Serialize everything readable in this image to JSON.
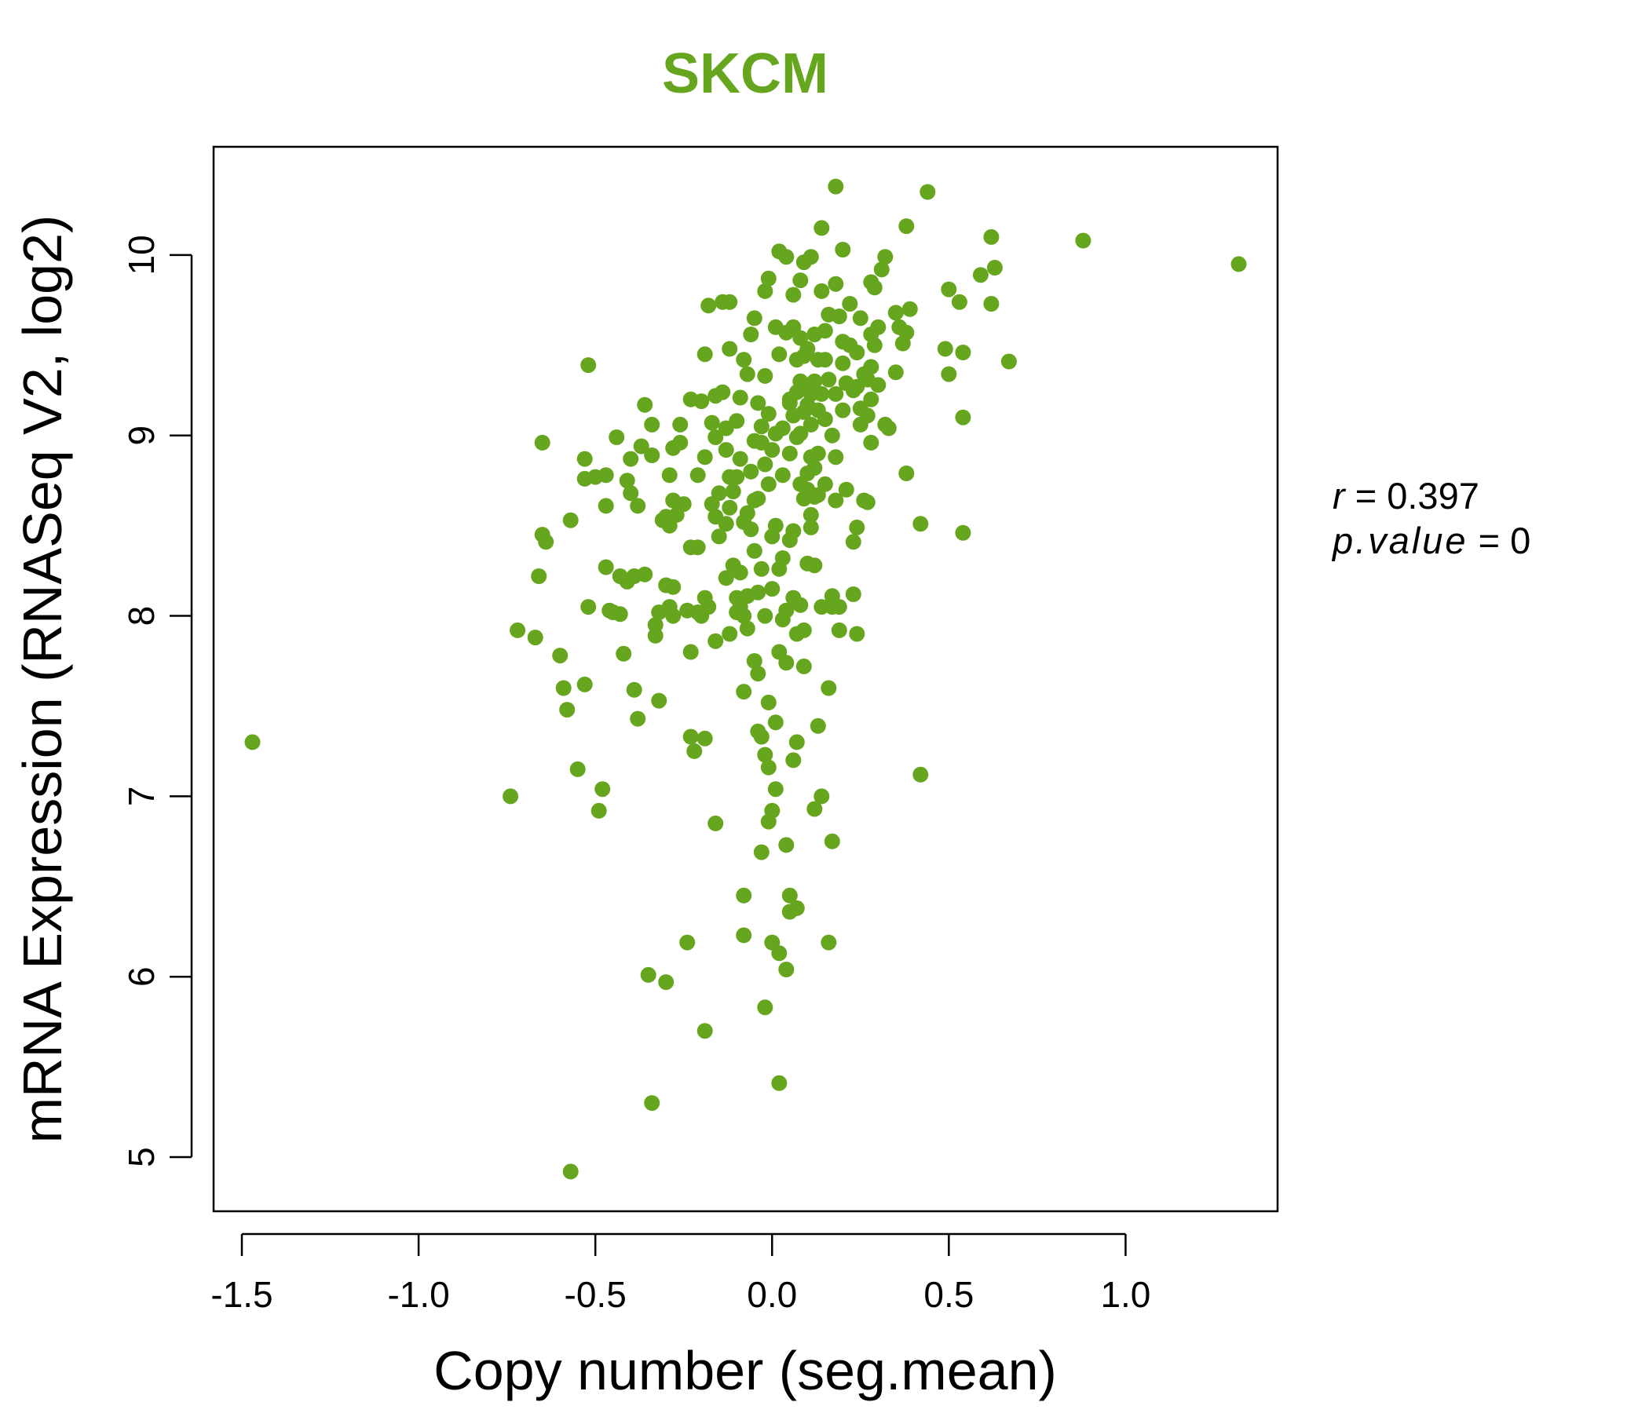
{
  "chart_data": {
    "type": "scatter",
    "title": "SKCM",
    "xlabel": "Copy number (seg.mean)",
    "ylabel": "mRNA Expression (RNASeq V2, log2)",
    "xlim": [
      -1.58,
      1.43
    ],
    "ylim": [
      4.7,
      10.6
    ],
    "x_ticks": [
      -1.5,
      -1.0,
      -0.5,
      0.0,
      0.5,
      1.0
    ],
    "x_tick_labels": [
      "-1.5",
      "-1.0",
      "-0.5",
      "0.0",
      "0.5",
      "1.0"
    ],
    "y_ticks": [
      5,
      6,
      7,
      8,
      9,
      10
    ],
    "y_tick_labels": [
      "5",
      "6",
      "7",
      "8",
      "9",
      "10"
    ],
    "grid": false,
    "point_color": "#66a61e",
    "title_color": "#66a61e",
    "stats": {
      "r_label": "r",
      "r_value": "0.397",
      "p_label": "p.value",
      "p_value": "0"
    },
    "points": [
      [
        -1.47,
        7.3
      ],
      [
        -0.74,
        7.0
      ],
      [
        -0.72,
        7.92
      ],
      [
        -0.67,
        7.88
      ],
      [
        -0.66,
        8.22
      ],
      [
        -0.65,
        8.45
      ],
      [
        -0.65,
        8.96
      ],
      [
        -0.64,
        8.41
      ],
      [
        -0.6,
        7.78
      ],
      [
        -0.59,
        7.6
      ],
      [
        -0.58,
        7.48
      ],
      [
        -0.57,
        8.53
      ],
      [
        -0.57,
        4.92
      ],
      [
        -0.55,
        7.15
      ],
      [
        -0.53,
        7.62
      ],
      [
        -0.53,
        8.76
      ],
      [
        -0.53,
        8.87
      ],
      [
        -0.52,
        8.05
      ],
      [
        -0.52,
        9.39
      ],
      [
        -0.5,
        8.77
      ],
      [
        -0.49,
        6.92
      ],
      [
        -0.48,
        7.04
      ],
      [
        -0.47,
        8.27
      ],
      [
        -0.47,
        8.61
      ],
      [
        -0.47,
        8.78
      ],
      [
        -0.46,
        8.03
      ],
      [
        -0.45,
        8.02
      ],
      [
        -0.44,
        8.99
      ],
      [
        -0.43,
        8.01
      ],
      [
        -0.43,
        8.22
      ],
      [
        -0.42,
        7.79
      ],
      [
        -0.41,
        8.19
      ],
      [
        -0.41,
        8.75
      ],
      [
        -0.4,
        8.68
      ],
      [
        -0.4,
        8.87
      ],
      [
        -0.39,
        7.59
      ],
      [
        -0.39,
        8.22
      ],
      [
        -0.38,
        7.43
      ],
      [
        -0.38,
        8.61
      ],
      [
        -0.37,
        8.94
      ],
      [
        -0.36,
        8.23
      ],
      [
        -0.36,
        9.17
      ],
      [
        -0.35,
        6.01
      ],
      [
        -0.34,
        5.3
      ],
      [
        -0.34,
        9.06
      ],
      [
        -0.34,
        8.89
      ],
      [
        -0.33,
        7.95
      ],
      [
        -0.33,
        7.89
      ],
      [
        -0.32,
        7.53
      ],
      [
        -0.32,
        8.02
      ],
      [
        -0.31,
        8.53
      ],
      [
        -0.3,
        5.97
      ],
      [
        -0.3,
        8.17
      ],
      [
        -0.3,
        8.55
      ],
      [
        -0.29,
        8.05
      ],
      [
        -0.29,
        8.5
      ],
      [
        -0.29,
        8.78
      ],
      [
        -0.28,
        8.0
      ],
      [
        -0.28,
        8.16
      ],
      [
        -0.28,
        8.64
      ],
      [
        -0.28,
        8.93
      ],
      [
        -0.27,
        8.56
      ],
      [
        -0.26,
        8.96
      ],
      [
        -0.26,
        9.06
      ],
      [
        -0.25,
        8.62
      ],
      [
        -0.24,
        6.19
      ],
      [
        -0.24,
        8.03
      ],
      [
        -0.23,
        7.33
      ],
      [
        -0.23,
        7.8
      ],
      [
        -0.23,
        8.38
      ],
      [
        -0.23,
        9.2
      ],
      [
        -0.22,
        7.25
      ],
      [
        -0.21,
        8.02
      ],
      [
        -0.21,
        8.38
      ],
      [
        -0.21,
        8.78
      ],
      [
        -0.2,
        8.0
      ],
      [
        -0.2,
        9.19
      ],
      [
        -0.19,
        5.7
      ],
      [
        -0.19,
        7.32
      ],
      [
        -0.19,
        8.1
      ],
      [
        -0.19,
        8.88
      ],
      [
        -0.19,
        9.45
      ],
      [
        -0.18,
        9.72
      ],
      [
        -0.18,
        8.05
      ],
      [
        -0.17,
        8.62
      ],
      [
        -0.17,
        9.07
      ],
      [
        -0.16,
        6.85
      ],
      [
        -0.16,
        7.86
      ],
      [
        -0.16,
        8.55
      ],
      [
        -0.16,
        8.99
      ],
      [
        -0.16,
        9.22
      ],
      [
        -0.15,
        8.44
      ],
      [
        -0.15,
        8.68
      ],
      [
        -0.14,
        9.24
      ],
      [
        -0.14,
        9.74
      ],
      [
        -0.13,
        8.21
      ],
      [
        -0.13,
        8.51
      ],
      [
        -0.13,
        8.92
      ],
      [
        -0.13,
        9.04
      ],
      [
        -0.12,
        9.74
      ],
      [
        -0.12,
        7.9
      ],
      [
        -0.12,
        8.6
      ],
      [
        -0.12,
        8.77
      ],
      [
        -0.12,
        9.48
      ],
      [
        -0.11,
        8.28
      ],
      [
        -0.11,
        8.69
      ],
      [
        -0.1,
        8.02
      ],
      [
        -0.1,
        8.1
      ],
      [
        -0.1,
        8.77
      ],
      [
        -0.1,
        9.08
      ],
      [
        -0.09,
        8.05
      ],
      [
        -0.09,
        8.24
      ],
      [
        -0.09,
        8.87
      ],
      [
        -0.09,
        9.21
      ],
      [
        -0.08,
        6.45
      ],
      [
        -0.08,
        6.23
      ],
      [
        -0.08,
        7.58
      ],
      [
        -0.08,
        8.0
      ],
      [
        -0.08,
        8.52
      ],
      [
        -0.08,
        9.42
      ],
      [
        -0.07,
        7.93
      ],
      [
        -0.07,
        8.11
      ],
      [
        -0.07,
        8.57
      ],
      [
        -0.07,
        9.34
      ],
      [
        -0.06,
        9.56
      ],
      [
        -0.06,
        8.8
      ],
      [
        -0.06,
        8.48
      ],
      [
        -0.05,
        9.65
      ],
      [
        -0.05,
        7.75
      ],
      [
        -0.05,
        8.36
      ],
      [
        -0.05,
        8.64
      ],
      [
        -0.05,
        8.97
      ],
      [
        -0.04,
        8.13
      ],
      [
        -0.04,
        8.65
      ],
      [
        -0.04,
        9.18
      ],
      [
        -0.04,
        7.36
      ],
      [
        -0.04,
        7.68
      ],
      [
        -0.03,
        9.05
      ],
      [
        -0.03,
        8.96
      ],
      [
        -0.03,
        8.26
      ],
      [
        -0.03,
        7.33
      ],
      [
        -0.03,
        6.69
      ],
      [
        -0.02,
        5.83
      ],
      [
        -0.02,
        7.23
      ],
      [
        -0.02,
        8.0
      ],
      [
        -0.02,
        8.84
      ],
      [
        -0.02,
        9.33
      ],
      [
        -0.02,
        9.8
      ],
      [
        -0.01,
        6.86
      ],
      [
        -0.01,
        7.16
      ],
      [
        -0.01,
        7.52
      ],
      [
        -0.01,
        8.73
      ],
      [
        -0.01,
        9.12
      ],
      [
        -0.01,
        9.87
      ],
      [
        0.0,
        8.92
      ],
      [
        0.0,
        8.15
      ],
      [
        0.0,
        8.44
      ],
      [
        0.0,
        6.19
      ],
      [
        0.0,
        6.92
      ],
      [
        0.01,
        9.01
      ],
      [
        0.01,
        8.5
      ],
      [
        0.01,
        7.04
      ],
      [
        0.01,
        7.41
      ],
      [
        0.01,
        9.6
      ],
      [
        0.02,
        9.45
      ],
      [
        0.02,
        7.8
      ],
      [
        0.02,
        8.26
      ],
      [
        0.02,
        6.13
      ],
      [
        0.02,
        5.41
      ],
      [
        0.02,
        10.02
      ],
      [
        0.03,
        9.04
      ],
      [
        0.03,
        8.78
      ],
      [
        0.03,
        8.32
      ],
      [
        0.03,
        7.98
      ],
      [
        0.04,
        8.03
      ],
      [
        0.04,
        7.74
      ],
      [
        0.04,
        6.04
      ],
      [
        0.04,
        6.73
      ],
      [
        0.04,
        9.99
      ],
      [
        0.04,
        9.57
      ],
      [
        0.05,
        9.2
      ],
      [
        0.05,
        6.36
      ],
      [
        0.05,
        8.42
      ],
      [
        0.05,
        6.45
      ],
      [
        0.05,
        9.18
      ],
      [
        0.05,
        8.9
      ],
      [
        0.06,
        9.11
      ],
      [
        0.06,
        9.6
      ],
      [
        0.06,
        7.2
      ],
      [
        0.06,
        9.78
      ],
      [
        0.06,
        8.47
      ],
      [
        0.06,
        8.1
      ],
      [
        0.07,
        9.24
      ],
      [
        0.07,
        7.3
      ],
      [
        0.07,
        8.99
      ],
      [
        0.07,
        9.42
      ],
      [
        0.07,
        7.9
      ],
      [
        0.07,
        6.38
      ],
      [
        0.08,
        9.01
      ],
      [
        0.08,
        8.73
      ],
      [
        0.08,
        9.86
      ],
      [
        0.08,
        8.06
      ],
      [
        0.08,
        9.3
      ],
      [
        0.08,
        9.54
      ],
      [
        0.09,
        9.13
      ],
      [
        0.09,
        8.65
      ],
      [
        0.09,
        7.72
      ],
      [
        0.09,
        9.96
      ],
      [
        0.09,
        9.44
      ],
      [
        0.09,
        7.92
      ],
      [
        0.1,
        8.79
      ],
      [
        0.1,
        9.28
      ],
      [
        0.1,
        8.29
      ],
      [
        0.1,
        9.48
      ],
      [
        0.1,
        8.7
      ],
      [
        0.1,
        9.17
      ],
      [
        0.11,
        8.56
      ],
      [
        0.11,
        8.88
      ],
      [
        0.11,
        9.99
      ],
      [
        0.11,
        8.49
      ],
      [
        0.11,
        9.23
      ],
      [
        0.11,
        9.06
      ],
      [
        0.12,
        6.93
      ],
      [
        0.12,
        8.66
      ],
      [
        0.12,
        9.3
      ],
      [
        0.12,
        8.82
      ],
      [
        0.12,
        9.56
      ],
      [
        0.12,
        8.28
      ],
      [
        0.13,
        7.39
      ],
      [
        0.13,
        9.42
      ],
      [
        0.13,
        8.9
      ],
      [
        0.13,
        9.14
      ],
      [
        0.13,
        8.67
      ],
      [
        0.14,
        10.15
      ],
      [
        0.14,
        9.8
      ],
      [
        0.14,
        7.0
      ],
      [
        0.14,
        8.05
      ],
      [
        0.14,
        9.23
      ],
      [
        0.15,
        9.09
      ],
      [
        0.15,
        8.73
      ],
      [
        0.15,
        9.58
      ],
      [
        0.15,
        9.42
      ],
      [
        0.16,
        6.19
      ],
      [
        0.16,
        7.6
      ],
      [
        0.16,
        9.67
      ],
      [
        0.16,
        9.31
      ],
      [
        0.17,
        9.0
      ],
      [
        0.17,
        8.05
      ],
      [
        0.17,
        6.75
      ],
      [
        0.17,
        8.11
      ],
      [
        0.18,
        10.38
      ],
      [
        0.18,
        9.84
      ],
      [
        0.18,
        8.64
      ],
      [
        0.18,
        8.88
      ],
      [
        0.18,
        9.23
      ],
      [
        0.19,
        9.66
      ],
      [
        0.19,
        8.05
      ],
      [
        0.19,
        7.92
      ],
      [
        0.2,
        10.03
      ],
      [
        0.2,
        9.4
      ],
      [
        0.2,
        9.52
      ],
      [
        0.2,
        9.14
      ],
      [
        0.21,
        8.7
      ],
      [
        0.21,
        9.29
      ],
      [
        0.22,
        9.73
      ],
      [
        0.22,
        9.5
      ],
      [
        0.23,
        8.12
      ],
      [
        0.23,
        9.25
      ],
      [
        0.23,
        8.41
      ],
      [
        0.24,
        7.9
      ],
      [
        0.24,
        8.49
      ],
      [
        0.24,
        9.46
      ],
      [
        0.24,
        9.27
      ],
      [
        0.25,
        9.65
      ],
      [
        0.25,
        9.06
      ],
      [
        0.25,
        9.15
      ],
      [
        0.26,
        8.64
      ],
      [
        0.26,
        9.34
      ],
      [
        0.27,
        9.31
      ],
      [
        0.27,
        8.63
      ],
      [
        0.27,
        9.11
      ],
      [
        0.28,
        9.2
      ],
      [
        0.28,
        9.56
      ],
      [
        0.28,
        9.85
      ],
      [
        0.28,
        8.96
      ],
      [
        0.28,
        9.38
      ],
      [
        0.29,
        9.5
      ],
      [
        0.29,
        9.82
      ],
      [
        0.3,
        9.6
      ],
      [
        0.3,
        9.28
      ],
      [
        0.31,
        9.92
      ],
      [
        0.32,
        9.06
      ],
      [
        0.32,
        9.99
      ],
      [
        0.33,
        9.04
      ],
      [
        0.35,
        9.35
      ],
      [
        0.35,
        9.68
      ],
      [
        0.36,
        9.6
      ],
      [
        0.37,
        9.51
      ],
      [
        0.38,
        10.16
      ],
      [
        0.38,
        9.57
      ],
      [
        0.38,
        8.79
      ],
      [
        0.39,
        9.7
      ],
      [
        0.42,
        8.51
      ],
      [
        0.42,
        7.12
      ],
      [
        0.44,
        10.35
      ],
      [
        0.49,
        9.48
      ],
      [
        0.5,
        9.81
      ],
      [
        0.5,
        9.34
      ],
      [
        0.53,
        9.74
      ],
      [
        0.54,
        9.46
      ],
      [
        0.54,
        9.1
      ],
      [
        0.54,
        8.46
      ],
      [
        0.59,
        9.89
      ],
      [
        0.62,
        10.1
      ],
      [
        0.62,
        9.73
      ],
      [
        0.63,
        9.93
      ],
      [
        0.67,
        9.41
      ],
      [
        0.88,
        10.08
      ],
      [
        1.32,
        9.95
      ]
    ]
  }
}
